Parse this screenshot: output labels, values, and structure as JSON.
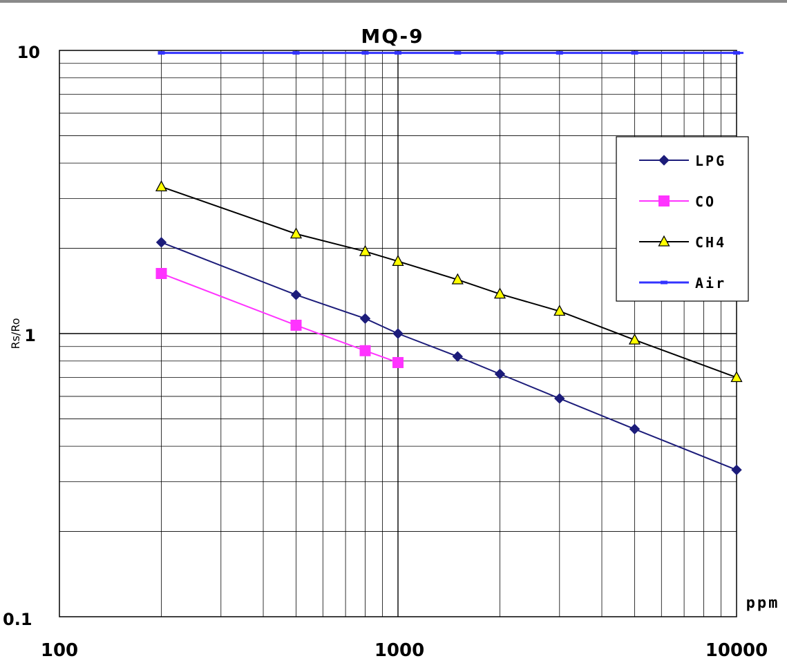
{
  "chart_data": {
    "type": "line",
    "title": "MQ-9",
    "xlabel": "ppm",
    "ylabel": "Rs/Ro",
    "x_scale": "log",
    "y_scale": "log",
    "xlim": [
      100,
      10000
    ],
    "ylim": [
      0.1,
      10
    ],
    "x_tick_labels": [
      "100",
      "1000",
      "10000"
    ],
    "y_tick_labels": [
      "0.1",
      "1",
      "10"
    ],
    "grid": true,
    "legend_position": "top-right",
    "series": [
      {
        "name": "LPG",
        "color": "#1c1c7a",
        "marker": "diamond",
        "x": [
          200,
          500,
          800,
          1000,
          1500,
          2000,
          3000,
          5000,
          10000
        ],
        "y": [
          2.1,
          1.37,
          1.13,
          1.0,
          0.83,
          0.72,
          0.59,
          0.46,
          0.33
        ]
      },
      {
        "name": "CO",
        "color": "#ff33ff",
        "marker": "square",
        "x": [
          200,
          500,
          800,
          1000
        ],
        "y": [
          1.63,
          1.07,
          0.87,
          0.79
        ]
      },
      {
        "name": "CH4",
        "color": "#000000",
        "marker": "triangle",
        "marker_fill": "#ffff00",
        "x": [
          200,
          500,
          800,
          1000,
          1500,
          2000,
          3000,
          5000,
          10000
        ],
        "y": [
          3.3,
          2.25,
          1.95,
          1.8,
          1.55,
          1.38,
          1.2,
          0.95,
          0.7
        ]
      },
      {
        "name": "Air",
        "color": "#3333ff",
        "marker": "dash",
        "x": [
          200,
          500,
          800,
          1000,
          1500,
          2000,
          3000,
          5000,
          10000
        ],
        "y": [
          9.8,
          9.8,
          9.8,
          9.8,
          9.8,
          9.8,
          9.8,
          9.8,
          9.8
        ]
      }
    ]
  }
}
